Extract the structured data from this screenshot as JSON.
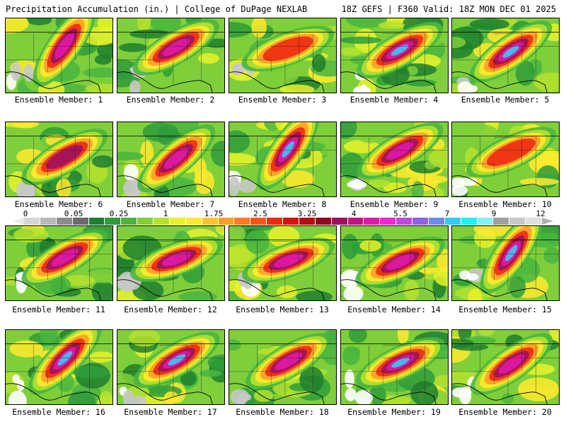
{
  "header": {
    "left_title": "Precipitation Accumulation (in.) | College of DuPage NEXLAB",
    "right_title": "18Z GEFS | F360 Valid: 18Z MON DEC 01 2025"
  },
  "caption_prefix": "Ensemble Member:",
  "members": [
    {
      "label": "Ensemble Member: 1"
    },
    {
      "label": "Ensemble Member: 2"
    },
    {
      "label": "Ensemble Member: 3"
    },
    {
      "label": "Ensemble Member: 4"
    },
    {
      "label": "Ensemble Member: 5"
    },
    {
      "label": "Ensemble Member: 6"
    },
    {
      "label": "Ensemble Member: 7"
    },
    {
      "label": "Ensemble Member: 8"
    },
    {
      "label": "Ensemble Member: 9"
    },
    {
      "label": "Ensemble Member: 10"
    },
    {
      "label": "Ensemble Member: 11"
    },
    {
      "label": "Ensemble Member: 12"
    },
    {
      "label": "Ensemble Member: 13"
    },
    {
      "label": "Ensemble Member: 14"
    },
    {
      "label": "Ensemble Member: 15"
    },
    {
      "label": "Ensemble Member: 16"
    },
    {
      "label": "Ensemble Member: 17"
    },
    {
      "label": "Ensemble Member: 18"
    },
    {
      "label": "Ensemble Member: 19"
    },
    {
      "label": "Ensemble Member: 20"
    }
  ],
  "colorbar": {
    "ticks": [
      "0",
      "0.05",
      "0.25",
      "1",
      "1.75",
      "2.5",
      "3.25",
      "4",
      "5.5",
      "7",
      "9",
      "12"
    ],
    "colors": [
      "#d6d6d6",
      "#b8b8b8",
      "#8c8c8c",
      "#6b6b6b",
      "#1e7f2e",
      "#2e9c3a",
      "#49b640",
      "#7fcf3a",
      "#b5e22e",
      "#e8f22a",
      "#ffea2e",
      "#ffc42b",
      "#ff9f26",
      "#ff7a20",
      "#ff521a",
      "#ee2a14",
      "#d4120f",
      "#b30d14",
      "#8e0a1c",
      "#a0105f",
      "#c0147e",
      "#e01aa8",
      "#f028d0",
      "#c048e0",
      "#9060e8",
      "#6a8cf0",
      "#38c8f4",
      "#20f0f0",
      "#80f4f4",
      "#a0a0a0",
      "#c8c8c8",
      "#e0e0e0"
    ]
  }
}
